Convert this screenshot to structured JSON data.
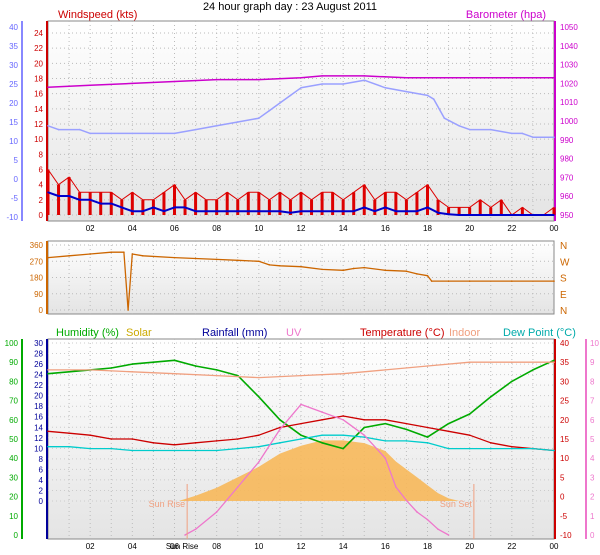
{
  "title": "24 hour graph day : 23 August 2011",
  "x_ticks": [
    "02",
    "04",
    "06",
    "08",
    "10",
    "12",
    "14",
    "16",
    "18",
    "20",
    "22",
    "00"
  ],
  "colors": {
    "blue": "#6060ff",
    "red": "#cc0000",
    "magenta": "#cc00cc",
    "humidity": "#00aa00",
    "solar": "#f7b85a",
    "rainfall": "#000099",
    "uv": "#ee77cc",
    "indoor": "#f0a080",
    "dewpoint": "#00cccc",
    "direction": "#cc6600"
  },
  "chart_data": [
    {
      "type": "line",
      "name": "wind-barometer",
      "labels": {
        "left": "Windspeed (kts)",
        "right": "Barometer (hpa)"
      },
      "x_hours_range": [
        0,
        24
      ],
      "y_outer_left": {
        "ticks": [
          -10,
          -5,
          0,
          5,
          10,
          15,
          20,
          25,
          30,
          35,
          40
        ]
      },
      "y_inner_left": {
        "ticks": [
          0,
          2,
          4,
          6,
          8,
          10,
          12,
          14,
          16,
          18,
          20,
          22,
          24
        ]
      },
      "y_right": {
        "ticks": [
          950,
          960,
          970,
          980,
          990,
          1000,
          1010,
          1020,
          1030,
          1040,
          1050
        ]
      },
      "series": [
        {
          "key": "barometer",
          "color": "#cc00cc",
          "axis": "right",
          "x": [
            0,
            2,
            4,
            6,
            8,
            10,
            12,
            13,
            15,
            17,
            18,
            19,
            20,
            22,
            24
          ],
          "y": [
            1018,
            1019,
            1020,
            1021,
            1022,
            1022,
            1023,
            1024,
            1024,
            1023,
            1023,
            1023,
            1023,
            1023,
            1023
          ]
        },
        {
          "key": "wind_line",
          "color": "#9aa0ff",
          "axis": "outer_left",
          "x": [
            0,
            0.5,
            1.5,
            2,
            3,
            4,
            5,
            6,
            7,
            8,
            9,
            10,
            10.5,
            11,
            11.5,
            12,
            13,
            14,
            15,
            16,
            17,
            18,
            18.3,
            18.8,
            19.5,
            20,
            21,
            22,
            22.5,
            23,
            24
          ],
          "y": [
            14,
            13,
            13,
            12,
            12,
            12,
            12,
            12,
            13,
            14,
            15,
            16,
            18,
            20,
            22,
            24,
            25,
            25,
            26,
            24,
            23,
            22,
            21,
            16,
            14,
            13,
            13,
            12,
            12,
            11,
            11
          ]
        },
        {
          "key": "wind_gust",
          "color": "#dd0000",
          "axis": "inner_left",
          "x": [
            0,
            0.5,
            1,
            1.5,
            2,
            2.5,
            3,
            3.5,
            4,
            4.5,
            5,
            5.5,
            6,
            6.5,
            7,
            7.5,
            8,
            8.5,
            9,
            9.5,
            10,
            10.5,
            11,
            11.5,
            12,
            12.5,
            13,
            13.5,
            14,
            14.5,
            15,
            15.5,
            16,
            16.5,
            17,
            17.5,
            18,
            18.5,
            19,
            19.5,
            20,
            20.5,
            21,
            21.5,
            22,
            22.5,
            23,
            23.5,
            24
          ],
          "y": [
            6,
            4,
            5,
            3,
            3,
            3,
            3,
            2,
            3,
            2,
            2,
            3,
            4,
            2,
            3,
            2,
            2,
            3,
            2,
            3,
            3,
            2,
            3,
            2,
            3,
            2,
            3,
            3,
            2,
            3,
            4,
            2,
            3,
            3,
            2,
            3,
            4,
            2,
            1,
            1,
            1,
            2,
            1,
            2,
            0,
            1,
            0,
            0,
            1
          ]
        },
        {
          "key": "wind_avg",
          "color": "#0000cc",
          "axis": "inner_left",
          "x": [
            0,
            0.5,
            1,
            1.5,
            2,
            2.5,
            3,
            3.5,
            4,
            4.5,
            5,
            5.5,
            6,
            6.5,
            7,
            7.5,
            8,
            8.5,
            9,
            9.5,
            10,
            10.5,
            11,
            11.5,
            12,
            12.5,
            13,
            13.5,
            14,
            14.5,
            15,
            15.5,
            16,
            16.5,
            17,
            17.5,
            18,
            18.5,
            19,
            19.5,
            20,
            20.5,
            21,
            21.5,
            22,
            22.5,
            23,
            23.5,
            24
          ],
          "y": [
            3,
            2.5,
            2.5,
            2,
            2,
            1.5,
            1.5,
            1,
            0.5,
            0.5,
            1,
            0.5,
            1,
            1,
            0.5,
            0.5,
            0.5,
            0.5,
            0.5,
            0.5,
            0.5,
            0.5,
            0.5,
            0.3,
            0.5,
            0.5,
            0.5,
            0.5,
            0.5,
            0.5,
            1,
            0.5,
            1,
            0.5,
            0.5,
            0.5,
            1,
            0.3,
            0.1,
            0,
            0,
            0,
            0,
            0,
            0,
            0,
            0,
            0,
            0
          ]
        }
      ]
    },
    {
      "type": "line",
      "name": "wind-direction",
      "x_hours_range": [
        0,
        24
      ],
      "y_left": {
        "ticks": [
          0,
          90,
          180,
          270,
          360
        ]
      },
      "compass": [
        "N",
        "W",
        "S",
        "E",
        "N"
      ],
      "series": [
        {
          "key": "direction",
          "color": "#cc6600",
          "x": [
            0,
            1,
            2,
            3,
            3.6,
            3.8,
            4,
            4.5,
            6,
            7,
            8,
            9,
            10,
            10.5,
            11,
            12,
            13,
            14,
            14.5,
            15,
            16,
            17,
            17.5,
            18,
            18.2,
            19,
            20,
            22,
            24
          ],
          "y": [
            290,
            300,
            310,
            320,
            320,
            0,
            310,
            300,
            290,
            285,
            280,
            275,
            270,
            250,
            245,
            240,
            225,
            220,
            230,
            235,
            220,
            215,
            200,
            190,
            160,
            160,
            160,
            160,
            160
          ]
        }
      ]
    },
    {
      "type": "line",
      "name": "humidity-temperature",
      "labels": {
        "humidity": "Humidity (%)",
        "solar": "Solar",
        "rainfall": "Rainfall (mm)",
        "uv": "UV",
        "temperature": "Temperature (°C)",
        "indoor": "Indoor",
        "dewpoint": "Dew Point (°C)"
      },
      "x_hours_range": [
        0,
        24
      ],
      "y_humidity": {
        "ticks": [
          0,
          10,
          20,
          30,
          40,
          50,
          60,
          70,
          80,
          90,
          100
        ]
      },
      "y_rainfall": {
        "ticks": [
          0,
          2,
          4,
          6,
          8,
          10,
          12,
          14,
          16,
          18,
          20,
          22,
          24,
          26,
          28,
          30
        ]
      },
      "y_temp": {
        "ticks": [
          -10,
          -5,
          0,
          5,
          10,
          15,
          20,
          25,
          30,
          35,
          40
        ]
      },
      "y_uv": {
        "ticks": [
          0,
          1,
          2,
          3,
          4,
          5,
          6,
          7,
          8,
          9,
          10
        ]
      },
      "annotations": [
        {
          "text": "Sun Rise",
          "hour": 6.6
        },
        {
          "text": "Sun Set",
          "hour": 20.2
        }
      ],
      "series": [
        {
          "key": "humidity",
          "color": "#00aa00",
          "axis": "humidity",
          "x": [
            0,
            1,
            2,
            3,
            4,
            5,
            6,
            7,
            8,
            9,
            10,
            11,
            12,
            13,
            14,
            15,
            16,
            17,
            18,
            19,
            20,
            21,
            22,
            23,
            24
          ],
          "y": [
            84,
            85,
            86,
            87,
            89,
            90,
            91,
            88,
            86,
            83,
            72,
            60,
            52,
            48,
            45,
            56,
            58,
            55,
            51,
            58,
            63,
            72,
            80,
            86,
            91
          ]
        },
        {
          "key": "indoor",
          "color": "#f0a080",
          "axis": "temp",
          "x": [
            0,
            2,
            4,
            6,
            8,
            10,
            12,
            14,
            16,
            18,
            20,
            22,
            24
          ],
          "y": [
            33,
            33,
            32.5,
            32,
            31.5,
            31,
            31.5,
            32,
            33,
            34,
            35,
            35,
            35
          ]
        },
        {
          "key": "temperature",
          "color": "#cc0000",
          "axis": "temp",
          "x": [
            0,
            1,
            2,
            3,
            4,
            5,
            6,
            7,
            8,
            9,
            10,
            11,
            12,
            13,
            14,
            15,
            16,
            17,
            18,
            19,
            20,
            21,
            22,
            23,
            24
          ],
          "y": [
            17,
            16.5,
            16,
            15,
            15,
            14,
            13.5,
            14,
            14.5,
            15,
            16,
            18,
            19,
            20,
            21,
            20,
            20,
            19,
            18,
            17,
            16,
            14,
            13,
            12.5,
            12
          ]
        },
        {
          "key": "dewpoint",
          "color": "#00cccc",
          "axis": "temp",
          "x": [
            0,
            1,
            2,
            3,
            4,
            5,
            6,
            7,
            8,
            9,
            10,
            11,
            12,
            13,
            14,
            15,
            16,
            17,
            18,
            19,
            20,
            21,
            22,
            23,
            24
          ],
          "y": [
            13,
            13,
            12.5,
            12.5,
            12,
            12,
            12,
            12,
            12,
            12.5,
            13,
            14,
            15,
            16,
            16,
            15.5,
            14.5,
            14.5,
            14,
            12.5,
            12.5,
            12.5,
            12.5,
            12.5,
            12
          ]
        },
        {
          "key": "uv",
          "color": "#ee77cc",
          "axis": "uv",
          "x": [
            6.5,
            7,
            8,
            9,
            10,
            11,
            12,
            13,
            14,
            15,
            16,
            16.5,
            17,
            17.5,
            18,
            18.5,
            19
          ],
          "y": [
            0,
            0.3,
            1.2,
            2.5,
            3.8,
            5.5,
            6.8,
            6.4,
            6,
            5.2,
            4,
            2.5,
            1.8,
            1.2,
            0.8,
            0.3,
            0
          ]
        },
        {
          "key": "solar",
          "color": "#f7b85a",
          "axis": "rainfall",
          "x": [
            6.2,
            7,
            8,
            9,
            10,
            11,
            12,
            13,
            14,
            15,
            16,
            16.5,
            17,
            17.5,
            18,
            18.5,
            19,
            19.5
          ],
          "y": [
            0,
            1,
            2.5,
            4.5,
            6.5,
            9,
            10.5,
            11.5,
            11.5,
            11,
            9.5,
            7.5,
            6,
            4.5,
            3,
            1.5,
            0.5,
            0
          ]
        }
      ]
    }
  ]
}
